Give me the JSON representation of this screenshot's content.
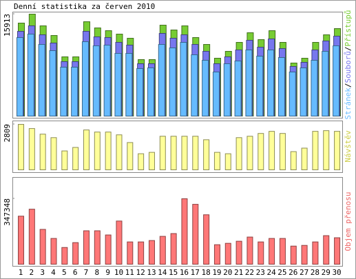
{
  "chart_data": [
    {
      "type": "bar",
      "title": "Denní statistika za červen 2010",
      "legend_separator": "/",
      "ylim": [
        0,
        15913
      ],
      "yticks": [
        15913
      ],
      "series": [
        {
          "name": "Přístupů",
          "color": "#77cc33",
          "values": [
            14513,
            15913,
            14083,
            12578,
            9245,
            9245,
            14728,
            13760,
            13330,
            12793,
            12148,
            8815,
            8815,
            14190,
            13438,
            14083,
            12255,
            11180,
            9030,
            10105,
            11503,
            13008,
            11933,
            13330,
            11503,
            8278,
            9030,
            11503,
            12685,
            13653
          ]
        },
        {
          "name": "Souborů",
          "color": "#7777ee",
          "values": [
            13223,
            14083,
            12685,
            11395,
            8493,
            8493,
            13223,
            12363,
            12255,
            11503,
            11073,
            8170,
            8170,
            12900,
            12148,
            12685,
            11180,
            10105,
            8170,
            9245,
            10320,
            11825,
            10750,
            12040,
            10535,
            7740,
            8385,
            10320,
            11718,
            12470
          ]
        },
        {
          "name": "Stránek",
          "color": "#66bbff",
          "values": [
            12255,
            12793,
            11180,
            10213,
            7633,
            7633,
            11610,
            10965,
            11073,
            9783,
            9783,
            7418,
            7525,
            11180,
            10643,
            11503,
            9568,
            8708,
            6880,
            8170,
            8600,
            10320,
            9353,
            10320,
            9138,
            6880,
            7525,
            8708,
            10105,
            10965
          ]
        }
      ]
    },
    {
      "type": "bar",
      "ylim": [
        0,
        2809
      ],
      "yticks": [
        2809
      ],
      "series": [
        {
          "name": "Návštěv",
          "color": "#ffff99",
          "label_color": "#cccc44",
          "values": [
            2809,
            2550,
            2204,
            1988,
            1167,
            1383,
            2463,
            2334,
            2334,
            2161,
            1685,
            994,
            1080,
            2074,
            2074,
            2074,
            2074,
            1858,
            1080,
            994,
            1988,
            2074,
            2247,
            2377,
            2247,
            1124,
            1340,
            2377,
            2420,
            2377
          ]
        }
      ]
    },
    {
      "type": "bar",
      "ylim": [
        0,
        347348
      ],
      "yticks": [
        347348
      ],
      "series": [
        {
          "name": "Objem přenosu",
          "color": "#ff7777",
          "label_color": "#ee6666",
          "values": [
            254968,
            291919,
            184760,
            136722,
            88684,
            114551,
            177370,
            177370,
            155198,
            229101,
            118246,
            118246,
            125637,
            147808,
            162589,
            347348,
            317785,
            262357,
            103465,
            110855,
            121941,
            144112,
            118246,
            136722,
            136722,
            96075,
            99770,
            118246,
            151503,
            140416
          ]
        }
      ],
      "categories": [
        "1",
        "2",
        "3",
        "4",
        "5",
        "6",
        "7",
        "8",
        "9",
        "10",
        "11",
        "12",
        "13",
        "14",
        "15",
        "16",
        "17",
        "18",
        "19",
        "20",
        "21",
        "22",
        "23",
        "24",
        "25",
        "26",
        "27",
        "28",
        "29",
        "30"
      ],
      "category_colors": [
        "#000",
        "#000",
        "#000",
        "#000",
        "#66aa33",
        "#66aa33",
        "#000",
        "#000",
        "#000",
        "#000",
        "#000",
        "#66aa33",
        "#66aa33",
        "#000",
        "#000",
        "#000",
        "#000",
        "#000",
        "#66aa33",
        "#66aa33",
        "#000",
        "#000",
        "#000",
        "#000",
        "#000",
        "#66aa33",
        "#66aa33",
        "#000",
        "#000",
        "#000"
      ]
    }
  ]
}
